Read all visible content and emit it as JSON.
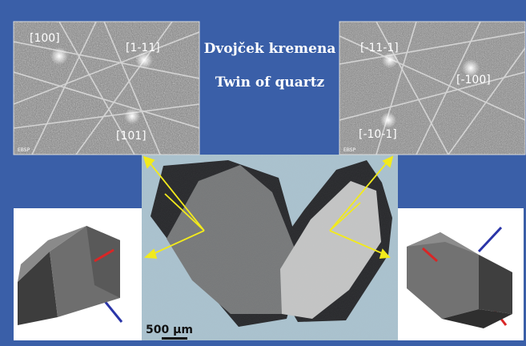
{
  "title_slovene": "Dvojček kremena",
  "title_english": "Twin of quartz",
  "ebsp_left": {
    "badge": "EBSP",
    "labels": [
      "[100]",
      "[1-11]",
      "[101]"
    ]
  },
  "ebsp_right": {
    "badge": "EBSP",
    "labels": [
      "[-11-1]",
      "[-100]",
      "[-10-1]"
    ]
  },
  "scale_bar": {
    "label": "500 µm"
  },
  "colors": {
    "background_blue": "#3a5fa8",
    "micrograph_bg": "#a9c2cf",
    "arrow_yellow": "#f2ea1c",
    "axis_red": "#d92626",
    "axis_blue": "#2a35a8"
  }
}
